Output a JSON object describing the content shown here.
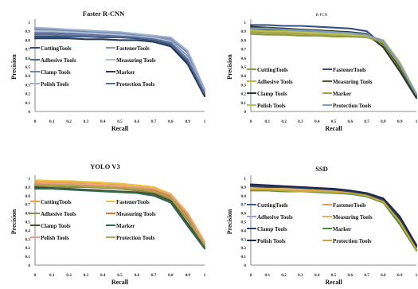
{
  "figure": {
    "xlabel": "Recall",
    "ylabel": "Precision",
    "xticks": [
      "0",
      "0.1",
      "0.2",
      "0.3",
      "0.4",
      "0.5",
      "0.6",
      "0.7",
      "0.8",
      "0.9",
      "1"
    ],
    "yticks": [
      "0",
      "0.1",
      "0.2",
      "0.3",
      "0.4",
      "0.5",
      "0.6",
      "0.7",
      "0.8",
      "0.9",
      "1"
    ]
  },
  "chart_data": [
    {
      "type": "line",
      "title": "Faster R-CNN",
      "xlabel": "Recall",
      "ylabel": "Precision",
      "xlim": [
        0,
        1
      ],
      "ylim": [
        0,
        1
      ],
      "x": [
        0,
        0.1,
        0.2,
        0.3,
        0.4,
        0.5,
        0.6,
        0.7,
        0.8,
        0.9,
        1.0
      ],
      "legend_columns": 2,
      "series": [
        {
          "name": "CuttingTools",
          "color": "#2f4d7a",
          "values": [
            0.84,
            0.84,
            0.84,
            0.84,
            0.83,
            0.83,
            0.82,
            0.8,
            0.75,
            0.55,
            0.18
          ]
        },
        {
          "name": "FastenerTools",
          "color": "#8c97b6",
          "values": [
            0.92,
            0.91,
            0.9,
            0.89,
            0.88,
            0.87,
            0.86,
            0.84,
            0.8,
            0.62,
            0.22
          ]
        },
        {
          "name": "Adhesive Tools",
          "color": "#4a6591",
          "values": [
            0.88,
            0.88,
            0.87,
            0.87,
            0.86,
            0.85,
            0.84,
            0.82,
            0.76,
            0.57,
            0.19
          ]
        },
        {
          "name": "Measuring Tools",
          "color": "#b4bccf",
          "values": [
            0.9,
            0.9,
            0.89,
            0.88,
            0.87,
            0.86,
            0.85,
            0.82,
            0.78,
            0.6,
            0.21
          ]
        },
        {
          "name": "Clamp Tools",
          "color": "#6f86ad",
          "values": [
            0.93,
            0.92,
            0.91,
            0.9,
            0.89,
            0.88,
            0.86,
            0.85,
            0.82,
            0.66,
            0.24
          ]
        },
        {
          "name": "Marker",
          "color": "#27395b",
          "values": [
            0.82,
            0.82,
            0.82,
            0.81,
            0.81,
            0.8,
            0.8,
            0.78,
            0.73,
            0.53,
            0.17
          ]
        },
        {
          "name": "Polish Tools",
          "color": "#9db1d3",
          "values": [
            0.94,
            0.93,
            0.92,
            0.91,
            0.9,
            0.89,
            0.87,
            0.85,
            0.83,
            0.68,
            0.25
          ]
        },
        {
          "name": "Protection Tools",
          "color": "#5a6f95",
          "values": [
            0.86,
            0.86,
            0.85,
            0.85,
            0.84,
            0.84,
            0.83,
            0.81,
            0.77,
            0.58,
            0.2
          ]
        }
      ]
    },
    {
      "type": "line",
      "title": "R-FCN",
      "xlabel": "Recall",
      "ylabel": "Precision",
      "xlim": [
        0,
        1
      ],
      "ylim": [
        0,
        1
      ],
      "x": [
        0,
        0.1,
        0.2,
        0.3,
        0.4,
        0.5,
        0.6,
        0.7,
        0.8,
        0.9,
        1.0
      ],
      "legend_columns": 2,
      "series": [
        {
          "name": "CuttingTools",
          "color": "#8a9a3a",
          "values": [
            0.87,
            0.86,
            0.86,
            0.85,
            0.85,
            0.84,
            0.84,
            0.83,
            0.78,
            0.5,
            0.18
          ]
        },
        {
          "name": "FastenerTools",
          "color": "#3a4e86",
          "values": [
            0.97,
            0.97,
            0.96,
            0.96,
            0.95,
            0.94,
            0.93,
            0.9,
            0.74,
            0.48,
            0.17
          ]
        },
        {
          "name": "Adhesive Tools",
          "color": "#c9b23a",
          "values": [
            0.9,
            0.9,
            0.89,
            0.89,
            0.88,
            0.87,
            0.86,
            0.84,
            0.75,
            0.47,
            0.16
          ]
        },
        {
          "name": "Measuring Tools",
          "color": "#4d5a2a",
          "values": [
            0.92,
            0.91,
            0.91,
            0.9,
            0.9,
            0.89,
            0.88,
            0.86,
            0.76,
            0.49,
            0.17
          ]
        },
        {
          "name": "Clamp Tools",
          "color": "#2b3a2a",
          "values": [
            0.95,
            0.94,
            0.93,
            0.92,
            0.91,
            0.9,
            0.89,
            0.87,
            0.72,
            0.45,
            0.15
          ]
        },
        {
          "name": "Marker",
          "color": "#a4a04a",
          "values": [
            0.89,
            0.88,
            0.88,
            0.87,
            0.86,
            0.86,
            0.85,
            0.84,
            0.77,
            0.52,
            0.19
          ]
        },
        {
          "name": "Polish Tools",
          "color": "#b7c24f",
          "values": [
            0.91,
            0.9,
            0.9,
            0.89,
            0.88,
            0.87,
            0.86,
            0.85,
            0.8,
            0.55,
            0.2
          ]
        },
        {
          "name": "Protection Tools",
          "color": "#7f9bc7",
          "values": [
            0.93,
            0.93,
            0.92,
            0.91,
            0.9,
            0.89,
            0.88,
            0.86,
            0.79,
            0.53,
            0.19
          ]
        }
      ]
    },
    {
      "type": "line",
      "title": "YOLO V3",
      "xlabel": "Recall",
      "ylabel": "Precision",
      "xlim": [
        0,
        1
      ],
      "ylim": [
        0,
        1
      ],
      "x": [
        0,
        0.1,
        0.2,
        0.3,
        0.4,
        0.5,
        0.6,
        0.7,
        0.8,
        0.9,
        1.0
      ],
      "legend_columns": 2,
      "series": [
        {
          "name": "CuttingTools",
          "color": "#e8a23a",
          "values": [
            0.96,
            0.96,
            0.95,
            0.95,
            0.94,
            0.93,
            0.92,
            0.88,
            0.8,
            0.58,
            0.25
          ]
        },
        {
          "name": "FastenerTools",
          "color": "#f0c040",
          "values": [
            0.98,
            0.97,
            0.97,
            0.96,
            0.95,
            0.94,
            0.92,
            0.9,
            0.82,
            0.6,
            0.27
          ]
        },
        {
          "name": "Adhesive Tools",
          "color": "#8a8a4a",
          "values": [
            0.92,
            0.91,
            0.9,
            0.9,
            0.89,
            0.88,
            0.86,
            0.84,
            0.76,
            0.52,
            0.22
          ]
        },
        {
          "name": "Measuring Tools",
          "color": "#d2782a",
          "values": [
            0.94,
            0.93,
            0.93,
            0.92,
            0.91,
            0.9,
            0.89,
            0.87,
            0.79,
            0.56,
            0.24
          ]
        },
        {
          "name": "Clamp Tools",
          "color": "#4f4a2a",
          "values": [
            0.9,
            0.89,
            0.88,
            0.87,
            0.86,
            0.85,
            0.84,
            0.82,
            0.74,
            0.48,
            0.2
          ]
        },
        {
          "name": "Marker",
          "color": "#2e6b4f",
          "values": [
            0.88,
            0.88,
            0.87,
            0.86,
            0.85,
            0.84,
            0.83,
            0.8,
            0.72,
            0.45,
            0.19
          ]
        },
        {
          "name": "Polish Tools",
          "color": "#e6a08a",
          "values": [
            0.95,
            0.94,
            0.94,
            0.93,
            0.92,
            0.91,
            0.9,
            0.88,
            0.81,
            0.59,
            0.26
          ]
        },
        {
          "name": "Protection Tools",
          "color": "#b3a34a",
          "values": [
            0.93,
            0.92,
            0.92,
            0.91,
            0.9,
            0.89,
            0.88,
            0.85,
            0.78,
            0.54,
            0.23
          ]
        }
      ]
    },
    {
      "type": "line",
      "title": "SSD",
      "xlabel": "Recall",
      "ylabel": "Precision",
      "xlim": [
        0,
        1
      ],
      "ylim": [
        0,
        1
      ],
      "x": [
        0,
        0.1,
        0.2,
        0.3,
        0.4,
        0.5,
        0.6,
        0.7,
        0.8,
        0.9,
        1.0
      ],
      "legend_columns": 2,
      "series": [
        {
          "name": "CuttingTools",
          "color": "#3b5a9a",
          "values": [
            0.92,
            0.91,
            0.9,
            0.89,
            0.88,
            0.87,
            0.85,
            0.82,
            0.76,
            0.55,
            0.22
          ]
        },
        {
          "name": "FastenerTools",
          "color": "#e89a55",
          "values": [
            0.9,
            0.89,
            0.89,
            0.88,
            0.87,
            0.86,
            0.84,
            0.81,
            0.75,
            0.52,
            0.2
          ]
        },
        {
          "name": "Adhesive Tools",
          "color": "#9aa0c8",
          "values": [
            0.88,
            0.88,
            0.87,
            0.86,
            0.85,
            0.84,
            0.83,
            0.8,
            0.73,
            0.49,
            0.18
          ]
        },
        {
          "name": "Measuring Tools",
          "color": "#e3b25a",
          "values": [
            0.89,
            0.89,
            0.88,
            0.87,
            0.86,
            0.85,
            0.84,
            0.81,
            0.74,
            0.51,
            0.19
          ]
        },
        {
          "name": "Clamp Tools",
          "color": "#2d3e6b",
          "values": [
            0.91,
            0.9,
            0.9,
            0.89,
            0.88,
            0.87,
            0.85,
            0.82,
            0.75,
            0.53,
            0.21
          ]
        },
        {
          "name": "Marker",
          "color": "#4f8a3a",
          "values": [
            0.86,
            0.86,
            0.85,
            0.85,
            0.84,
            0.83,
            0.82,
            0.79,
            0.72,
            0.47,
            0.17
          ]
        },
        {
          "name": "Polish Tools",
          "color": "#1f2a4a",
          "values": [
            0.93,
            0.92,
            0.91,
            0.9,
            0.89,
            0.88,
            0.86,
            0.83,
            0.77,
            0.56,
            0.23
          ]
        },
        {
          "name": "Protection Tools",
          "color": "#c9a93a",
          "values": [
            0.87,
            0.87,
            0.86,
            0.85,
            0.85,
            0.84,
            0.83,
            0.8,
            0.73,
            0.5,
            0.18
          ]
        }
      ]
    }
  ]
}
